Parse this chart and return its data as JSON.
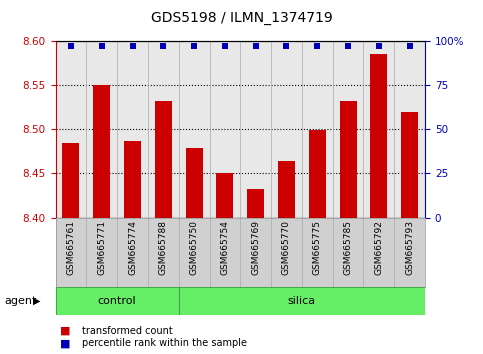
{
  "title": "GDS5198 / ILMN_1374719",
  "samples": [
    "GSM665761",
    "GSM665771",
    "GSM665774",
    "GSM665788",
    "GSM665750",
    "GSM665754",
    "GSM665769",
    "GSM665770",
    "GSM665775",
    "GSM665785",
    "GSM665792",
    "GSM665793"
  ],
  "red_values": [
    8.484,
    8.55,
    8.487,
    8.532,
    8.479,
    8.451,
    8.432,
    8.464,
    8.499,
    8.532,
    8.585,
    8.519
  ],
  "blue_values": [
    97,
    97,
    97,
    97,
    97,
    97,
    97,
    97,
    97,
    97,
    97,
    97
  ],
  "control_count": 4,
  "silica_count": 8,
  "group_row_label": "agent",
  "ylim_left": [
    8.4,
    8.6
  ],
  "ylim_right": [
    0,
    100
  ],
  "yticks_left": [
    8.4,
    8.45,
    8.5,
    8.55,
    8.6
  ],
  "yticks_right": [
    0,
    25,
    50,
    75,
    100
  ],
  "ytick_labels_right": [
    "0",
    "25",
    "50",
    "75",
    "100%"
  ],
  "bar_color": "#CC0000",
  "dot_color": "#0000BB",
  "bar_bottom": 8.4,
  "plot_bg_color": "#e8e8e8",
  "label_bg_color": "#d0d0d0",
  "group_bg_color": "#66EE66",
  "legend_items": [
    {
      "label": "transformed count",
      "color": "#CC0000"
    },
    {
      "label": "percentile rank within the sample",
      "color": "#0000BB"
    }
  ],
  "bar_width": 0.55
}
